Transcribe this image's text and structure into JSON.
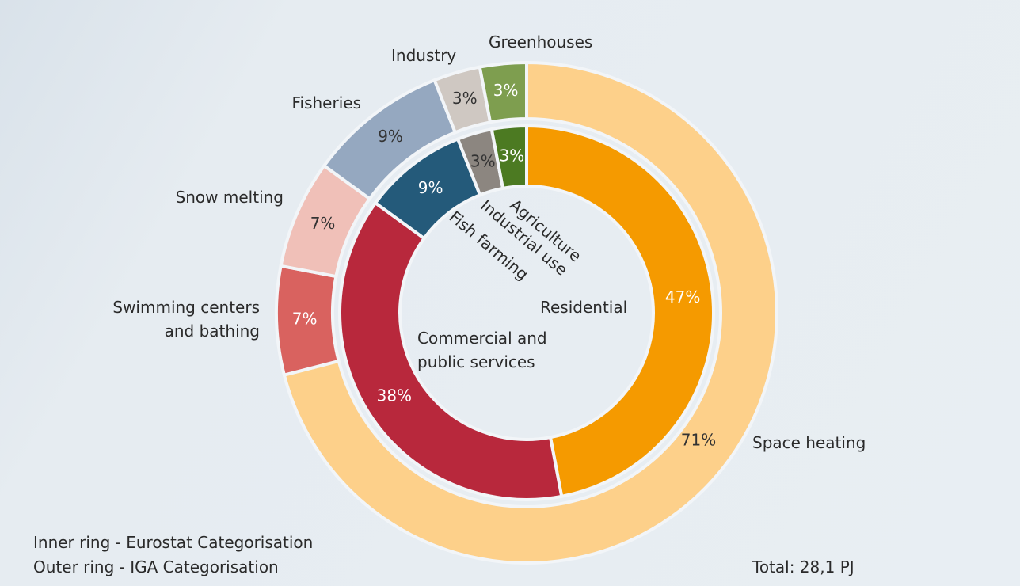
{
  "chart_data": {
    "type": "donut",
    "annotations": [
      "Inner ring - Eurostat Categorisation",
      "Outer ring - IGA Categorisation",
      "Total: 28,1 PJ"
    ],
    "inner": {
      "categories": [
        "Residential",
        "Commercial and public services",
        "Fish farming",
        "Industrial use",
        "Agriculture"
      ],
      "values": [
        47,
        38,
        9,
        3,
        3
      ],
      "value_labels": [
        "47%",
        "38%",
        "9%",
        "3%",
        "3%"
      ],
      "colors": [
        "#f59a00",
        "#b8283c",
        "#245a7a",
        "#8c8680",
        "#4c7a22"
      ]
    },
    "outer": {
      "categories": [
        "Space heating",
        "Swimming centers and bathing",
        "Snow melting",
        "Fisheries",
        "Industry",
        "Greenhouses"
      ],
      "values": [
        71,
        7,
        7,
        9,
        3,
        3
      ],
      "value_labels": [
        "71%",
        "7%",
        "7%",
        "9%",
        "3%",
        "3%"
      ],
      "colors": [
        "#fdd08a",
        "#d9625f",
        "#f0c0b8",
        "#95a8c0",
        "#cfc8c2",
        "#7e9e4f"
      ]
    }
  }
}
